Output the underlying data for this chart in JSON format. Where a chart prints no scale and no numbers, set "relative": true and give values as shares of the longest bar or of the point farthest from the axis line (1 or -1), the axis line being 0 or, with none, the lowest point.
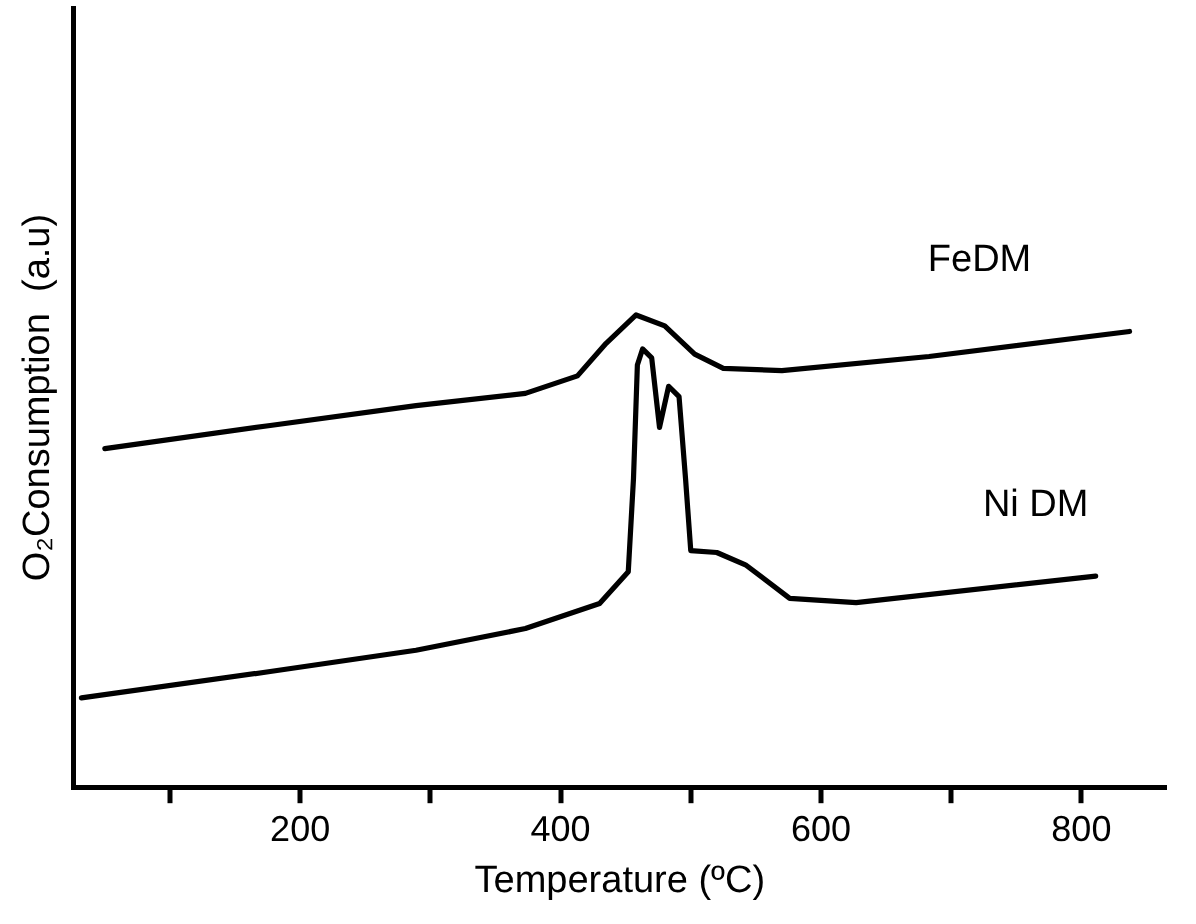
{
  "chart_data": {
    "type": "line",
    "xlabel": "Temperature (ºC)",
    "ylabel": "O₂Consumption  (a.u)",
    "relative": true,
    "xlim": [
      26,
      865
    ],
    "xticks": [
      {
        "value": 100,
        "label": null
      },
      200,
      {
        "value": 300,
        "label": null
      },
      400,
      {
        "value": 500,
        "label": null
      },
      600,
      {
        "value": 700,
        "label": null
      },
      800
    ],
    "grid": false,
    "legend": false,
    "marker": "none",
    "line_style": "solid",
    "series": [
      {
        "name": "FeDM",
        "color": "#000000",
        "x": [
          50,
          177,
          289,
          373,
          413,
          435,
          458,
          480,
          503,
          525,
          570,
          683,
          837
        ],
        "values": [
          0.717,
          0.766,
          0.808,
          0.834,
          0.871,
          0.94,
          1,
          0.977,
          0.917,
          0.887,
          0.882,
          0.912,
          0.965
        ]
      },
      {
        "name": "Ni DM",
        "color": "#000000",
        "x": [
          32,
          177,
          289,
          373,
          430,
          452,
          456,
          459,
          463,
          470,
          476,
          483,
          491,
          496,
          500,
          520,
          542,
          576,
          627,
          811
        ],
        "values": [
          0.189,
          0.245,
          0.29,
          0.336,
          0.389,
          0.456,
          0.653,
          0.894,
          0.928,
          0.909,
          0.762,
          0.849,
          0.827,
          0.653,
          0.501,
          0.497,
          0.471,
          0.4,
          0.391,
          0.447
        ]
      }
    ]
  }
}
